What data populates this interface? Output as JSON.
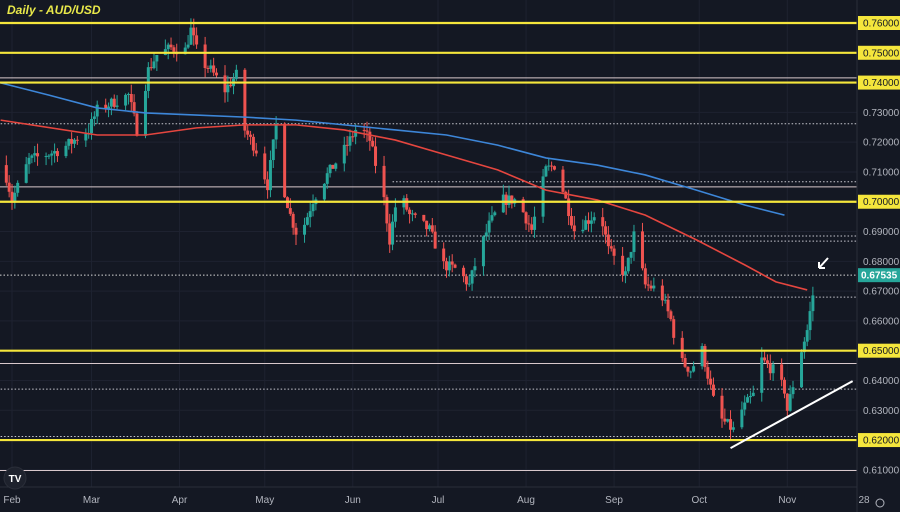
{
  "chart_data": {
    "type": "candlestick",
    "title": "Daily - AUD/USD",
    "ylim": [
      0.605,
      0.7665
    ],
    "y_ticks": [
      "0.61000",
      "0.62000",
      "0.63000",
      "0.64000",
      "0.65000",
      "0.66000",
      "0.67000",
      "0.68000",
      "0.69000",
      "0.70000",
      "0.71000",
      "0.72000",
      "0.73000",
      "0.74000",
      "0.75000",
      "0.76000"
    ],
    "x_ticks": [
      {
        "label": "Feb",
        "date": "02-01"
      },
      {
        "label": "Mar",
        "date": "03-01"
      },
      {
        "label": "Apr",
        "date": "04-01"
      },
      {
        "label": "May",
        "date": "05-01"
      },
      {
        "label": "Jun",
        "date": "06-01"
      },
      {
        "label": "Jul",
        "date": "07-01"
      },
      {
        "label": "Aug",
        "date": "08-01"
      },
      {
        "label": "Sep",
        "date": "09-01"
      },
      {
        "label": "Oct",
        "date": "10-01"
      },
      {
        "label": "Nov",
        "date": "11-01"
      },
      {
        "label": "28",
        "date": "11-28"
      }
    ],
    "current_price": "0.67535",
    "close_path": [
      [
        "01-29",
        0.7123
      ],
      [
        "02-01",
        0.7006
      ],
      [
        "02-07",
        0.714
      ],
      [
        "02-18",
        0.7174
      ],
      [
        "02-28",
        0.7241
      ],
      [
        "03-03",
        0.7308
      ],
      [
        "03-14",
        0.7358
      ],
      [
        "03-17",
        0.7241
      ],
      [
        "03-21",
        0.7442
      ],
      [
        "03-24",
        0.7493
      ],
      [
        "03-29",
        0.7516
      ],
      [
        "04-03",
        0.7509
      ],
      [
        "04-05",
        0.7577
      ],
      [
        "04-08",
        0.7476
      ],
      [
        "04-12",
        0.7442
      ],
      [
        "04-17",
        0.7375
      ],
      [
        "04-21",
        0.7425
      ],
      [
        "04-24",
        0.7241
      ],
      [
        "04-28",
        0.7174
      ],
      [
        "05-02",
        0.7056
      ],
      [
        "05-05",
        0.7258
      ],
      [
        "05-07",
        0.7073
      ],
      [
        "05-10",
        0.6955
      ],
      [
        "05-13",
        0.6872
      ],
      [
        "05-18",
        0.7006
      ],
      [
        "05-23",
        0.709
      ],
      [
        "05-29",
        0.7174
      ],
      [
        "06-03",
        0.7258
      ],
      [
        "06-07",
        0.7207
      ],
      [
        "06-12",
        0.7006
      ],
      [
        "06-14",
        0.6872
      ],
      [
        "06-17",
        0.7039
      ],
      [
        "06-21",
        0.6955
      ],
      [
        "06-28",
        0.6905
      ],
      [
        "07-03",
        0.6788
      ],
      [
        "07-08",
        0.6771
      ],
      [
        "07-12",
        0.672
      ],
      [
        "07-15",
        0.6821
      ],
      [
        "07-19",
        0.6922
      ],
      [
        "07-24",
        0.7006
      ],
      [
        "07-29",
        0.7006
      ],
      [
        "08-03",
        0.6905
      ],
      [
        "08-08",
        0.7107
      ],
      [
        "08-11",
        0.7123
      ],
      [
        "08-14",
        0.7039
      ],
      [
        "08-18",
        0.6905
      ],
      [
        "08-23",
        0.6939
      ],
      [
        "08-27",
        0.6972
      ],
      [
        "08-30",
        0.6838
      ],
      [
        "09-05",
        0.6754
      ],
      [
        "09-08",
        0.6888
      ],
      [
        "09-12",
        0.672
      ],
      [
        "09-17",
        0.6704
      ],
      [
        "09-21",
        0.6603
      ],
      [
        "09-24",
        0.6469
      ],
      [
        "09-28",
        0.6435
      ],
      [
        "10-02",
        0.6502
      ],
      [
        "10-06",
        0.6334
      ],
      [
        "10-09",
        0.6267
      ],
      [
        "10-13",
        0.6234
      ],
      [
        "10-16",
        0.6301
      ],
      [
        "10-20",
        0.6351
      ],
      [
        "10-23",
        0.6469
      ],
      [
        "10-27",
        0.6435
      ],
      [
        "10-31",
        0.6368
      ],
      [
        "11-01",
        0.6301
      ],
      [
        "11-05",
        0.6469
      ],
      [
        "11-08",
        0.6569
      ],
      [
        "11-10",
        0.6687
      ],
      [
        "11-11",
        0.67535
      ]
    ],
    "moving_averages": [
      {
        "color": "#e5463f",
        "points": [
          [
            "01-28",
            0.7274
          ],
          [
            "03-03",
            0.7224
          ],
          [
            "03-20",
            0.7224
          ],
          [
            "04-07",
            0.7248
          ],
          [
            "04-24",
            0.7258
          ],
          [
            "05-12",
            0.7258
          ],
          [
            "05-29",
            0.7241
          ],
          [
            "06-16",
            0.7207
          ],
          [
            "07-04",
            0.7157
          ],
          [
            "07-22",
            0.7107
          ],
          [
            "08-08",
            0.7039
          ],
          [
            "08-26",
            0.7006
          ],
          [
            "09-12",
            0.6955
          ],
          [
            "09-30",
            0.6872
          ],
          [
            "10-17",
            0.6788
          ],
          [
            "10-28",
            0.6731
          ],
          [
            "11-08",
            0.6704
          ]
        ]
      },
      {
        "color": "#3d86d8",
        "points": [
          [
            "01-28",
            0.7399
          ],
          [
            "02-14",
            0.7358
          ],
          [
            "03-03",
            0.7315
          ],
          [
            "03-20",
            0.7298
          ],
          [
            "04-07",
            0.7291
          ],
          [
            "04-24",
            0.7284
          ],
          [
            "05-12",
            0.7274
          ],
          [
            "05-29",
            0.7258
          ],
          [
            "06-16",
            0.7241
          ],
          [
            "07-04",
            0.7224
          ],
          [
            "07-22",
            0.719
          ],
          [
            "08-08",
            0.7147
          ],
          [
            "08-26",
            0.7123
          ],
          [
            "09-12",
            0.709
          ],
          [
            "09-30",
            0.7039
          ],
          [
            "10-17",
            0.6989
          ],
          [
            "10-31",
            0.6955
          ]
        ]
      }
    ],
    "key_levels": [
      0.76,
      0.75,
      0.74,
      0.7,
      0.65,
      0.62
    ],
    "horizontal_lines": [
      0.7416,
      0.705,
      0.6457,
      0.6098
    ],
    "dotted_lines": [
      {
        "price": 0.7262,
        "from": "01-28"
      },
      {
        "price": 0.7067,
        "from": "06-15"
      },
      {
        "price": 0.6885,
        "from": "06-15"
      },
      {
        "price": 0.6868,
        "from": "06-15"
      },
      {
        "price": 0.668,
        "from": "07-12"
      },
      {
        "price": 0.6371,
        "from": "01-28"
      },
      {
        "price": 0.6212,
        "from": "01-28"
      }
    ],
    "trendline": [
      [
        "10-12",
        0.6173
      ],
      [
        "11-24",
        0.6398
      ]
    ],
    "colors": {
      "up": "#26a69a",
      "down": "#ef5350",
      "level": "#f5e63c",
      "background": "#141823"
    }
  }
}
